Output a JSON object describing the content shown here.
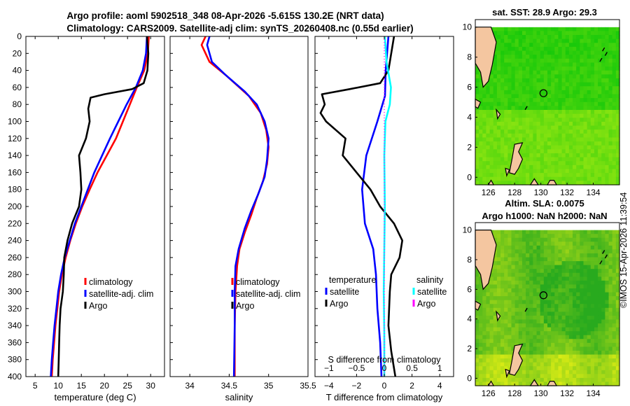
{
  "header": {
    "title_line1": "Argo profile: aoml 5902518_348 08-Apr-2026 -5.615S 130.2E (NRT data)",
    "title_line2": "Climatology: CARS2009. Satellite-adj clim: synTS_20260408.nc (0.55d earlier)"
  },
  "side_stamp": "©IMOS 15-Apr-2026 11:39:54",
  "chart_data": [
    {
      "id": "temperature",
      "type": "line",
      "xlabel": "temperature (deg C)",
      "ylabel": "",
      "xlim": [
        3,
        33
      ],
      "ylim": [
        400,
        0
      ],
      "xticks": [
        5,
        10,
        15,
        20,
        25,
        30
      ],
      "yticks": [
        0,
        20,
        40,
        60,
        80,
        100,
        120,
        140,
        160,
        180,
        200,
        220,
        240,
        260,
        280,
        300,
        320,
        340,
        360,
        380,
        400
      ],
      "legend": [
        "climatology",
        "satellite-adj. clim",
        "Argo"
      ],
      "legend_position": "bottom-right",
      "series": [
        {
          "name": "climatology",
          "color": "#ff0000",
          "points": [
            [
              29.6,
              0
            ],
            [
              29.4,
              20
            ],
            [
              28.6,
              40
            ],
            [
              27,
              60
            ],
            [
              25.5,
              80
            ],
            [
              24,
              100
            ],
            [
              22.5,
              120
            ],
            [
              20.5,
              140
            ],
            [
              18.5,
              160
            ],
            [
              16.8,
              180
            ],
            [
              15.2,
              200
            ],
            [
              13.8,
              220
            ],
            [
              12.6,
              240
            ],
            [
              11.6,
              260
            ],
            [
              10.8,
              280
            ],
            [
              10.2,
              300
            ],
            [
              9.8,
              320
            ],
            [
              9.4,
              340
            ],
            [
              9.1,
              360
            ],
            [
              8.8,
              380
            ],
            [
              8.6,
              400
            ]
          ]
        },
        {
          "name": "satellite-adj. clim",
          "color": "#0000ff",
          "points": [
            [
              29.2,
              0
            ],
            [
              29,
              20
            ],
            [
              28.3,
              40
            ],
            [
              26.8,
              60
            ],
            [
              24.8,
              80
            ],
            [
              23,
              100
            ],
            [
              21.2,
              120
            ],
            [
              19.5,
              140
            ],
            [
              17.8,
              160
            ],
            [
              16.4,
              180
            ],
            [
              15,
              200
            ],
            [
              13.6,
              220
            ],
            [
              12.5,
              240
            ],
            [
              11.4,
              260
            ],
            [
              10.6,
              280
            ],
            [
              10,
              300
            ],
            [
              9.6,
              320
            ],
            [
              9.2,
              340
            ],
            [
              8.9,
              360
            ],
            [
              8.6,
              380
            ],
            [
              8.4,
              400
            ]
          ]
        },
        {
          "name": "Argo",
          "color": "#000000",
          "points": [
            [
              29.2,
              0
            ],
            [
              29.5,
              20
            ],
            [
              29.3,
              40
            ],
            [
              28.5,
              55
            ],
            [
              26,
              62
            ],
            [
              20,
              68
            ],
            [
              17,
              72
            ],
            [
              16.5,
              85
            ],
            [
              16.8,
              100
            ],
            [
              16,
              120
            ],
            [
              14.5,
              140
            ],
            [
              14.8,
              160
            ],
            [
              15,
              180
            ],
            [
              14.5,
              200
            ],
            [
              13,
              220
            ],
            [
              12,
              240
            ],
            [
              11.3,
              260
            ],
            [
              11.2,
              280
            ],
            [
              11,
              300
            ],
            [
              10.5,
              320
            ],
            [
              10.3,
              340
            ],
            [
              10.2,
              360
            ],
            [
              10.1,
              380
            ],
            [
              10,
              400
            ]
          ]
        }
      ]
    },
    {
      "id": "salinity",
      "type": "line",
      "xlabel": "salinity",
      "ylabel": "",
      "xlim": [
        33.75,
        35.5
      ],
      "ylim": [
        400,
        0
      ],
      "xticks": [
        34,
        34.5,
        35,
        35.5
      ],
      "legend": [
        "climatology",
        "satellite-adj. clim",
        "Argo"
      ],
      "legend_position": "bottom-right",
      "series": [
        {
          "name": "climatology",
          "color": "#ff0000",
          "points": [
            [
              34.2,
              0
            ],
            [
              34.15,
              10
            ],
            [
              34.25,
              30
            ],
            [
              34.45,
              45
            ],
            [
              34.75,
              70
            ],
            [
              34.9,
              90
            ],
            [
              34.97,
              110
            ],
            [
              35,
              130
            ],
            [
              34.98,
              150
            ],
            [
              34.93,
              170
            ],
            [
              34.85,
              190
            ],
            [
              34.78,
              210
            ],
            [
              34.7,
              230
            ],
            [
              34.63,
              250
            ],
            [
              34.6,
              270
            ],
            [
              34.58,
              300
            ],
            [
              34.57,
              340
            ],
            [
              34.57,
              400
            ]
          ]
        },
        {
          "name": "satellite-adj. clim",
          "color": "#0000ff",
          "points": [
            [
              34.25,
              0
            ],
            [
              34.22,
              10
            ],
            [
              34.28,
              30
            ],
            [
              34.45,
              45
            ],
            [
              34.7,
              65
            ],
            [
              34.85,
              80
            ],
            [
              34.95,
              100
            ],
            [
              35,
              120
            ],
            [
              34.98,
              145
            ],
            [
              34.95,
              165
            ],
            [
              34.87,
              185
            ],
            [
              34.78,
              205
            ],
            [
              34.7,
              225
            ],
            [
              34.62,
              250
            ],
            [
              34.58,
              270
            ],
            [
              34.57,
              300
            ],
            [
              34.57,
              340
            ],
            [
              34.56,
              400
            ]
          ]
        }
      ]
    },
    {
      "id": "difference",
      "type": "line",
      "xlabel": "T difference from climatology",
      "x2label": "S difference from climatology",
      "ylabel": "",
      "xlim": [
        -5,
        5
      ],
      "x2lim": [
        -1.25,
        1.25
      ],
      "ylim": [
        400,
        0
      ],
      "xticks": [
        -4,
        -2,
        0,
        2,
        4
      ],
      "x2ticks": [
        -1,
        -0.5,
        0,
        0.5,
        1
      ],
      "legend_temperature_title": "temperature",
      "legend_salinity_title": "salinity",
      "legend_temperature": [
        "satellite",
        "Argo"
      ],
      "legend_salinity": [
        "satellite",
        "Argo"
      ],
      "legend_position": "bottom",
      "series": [
        {
          "name": "temperature satellite",
          "color": "#0000ff",
          "points": [
            [
              0.3,
              0
            ],
            [
              0.1,
              40
            ],
            [
              0.05,
              70
            ],
            [
              -0.5,
              100
            ],
            [
              -1.3,
              140
            ],
            [
              -1.6,
              180
            ],
            [
              -1.4,
              220
            ],
            [
              -0.8,
              250
            ],
            [
              -0.6,
              280
            ],
            [
              -0.5,
              320
            ],
            [
              -0.3,
              360
            ],
            [
              -0.2,
              400
            ]
          ]
        },
        {
          "name": "temperature Argo",
          "color": "#000000",
          "points": [
            [
              0.7,
              0
            ],
            [
              0.5,
              20
            ],
            [
              0.3,
              40
            ],
            [
              -0.3,
              55
            ],
            [
              -2.5,
              62
            ],
            [
              -4.5,
              68
            ],
            [
              -4.3,
              80
            ],
            [
              -4.6,
              90
            ],
            [
              -4.2,
              100
            ],
            [
              -2.8,
              120
            ],
            [
              -3,
              140
            ],
            [
              -2,
              160
            ],
            [
              -1,
              180
            ],
            [
              -0.3,
              200
            ],
            [
              0.7,
              220
            ],
            [
              1.3,
              240
            ],
            [
              1.1,
              260
            ],
            [
              0.5,
              280
            ],
            [
              0.4,
              300
            ],
            [
              0.3,
              340
            ],
            [
              0.5,
              370
            ],
            [
              0.8,
              400
            ]
          ]
        },
        {
          "name": "salinity satellite",
          "color": "#00ffff",
          "points": [
            [
              0.01,
              0
            ],
            [
              0.04,
              30
            ],
            [
              0.12,
              60
            ],
            [
              0.1,
              80
            ],
            [
              0.02,
              100
            ],
            [
              0,
              140
            ],
            [
              0.01,
              200
            ],
            [
              0,
              250
            ],
            [
              -0.01,
              300
            ],
            [
              0,
              350
            ],
            [
              0,
              400
            ]
          ]
        },
        {
          "name": "salinity Argo",
          "color": "#ff00ff",
          "points": [
            [
              0,
              0
            ],
            [
              0,
              400
            ]
          ]
        }
      ]
    },
    {
      "id": "sst-map",
      "type": "heatmap",
      "title": "sat. SST: 28.9 Argo: 29.3",
      "xlim": [
        125,
        136
      ],
      "ylim": [
        -0.5,
        10.5
      ],
      "xticks": [
        126,
        128,
        130,
        132,
        134
      ],
      "yticks": [
        0,
        2,
        4,
        6,
        8,
        10
      ],
      "marker": [
        130.2,
        5.6
      ]
    },
    {
      "id": "sla-map",
      "type": "heatmap",
      "title": "Altim. SLA: 0.0075",
      "subtitle": "Argo h1000: NaN h2000: NaN",
      "xlim": [
        125,
        136
      ],
      "ylim": [
        -0.5,
        10.5
      ],
      "xticks": [
        126,
        128,
        130,
        132,
        134
      ],
      "yticks": [
        0,
        2,
        4,
        6,
        8,
        10
      ],
      "marker": [
        130.2,
        5.6
      ]
    }
  ]
}
